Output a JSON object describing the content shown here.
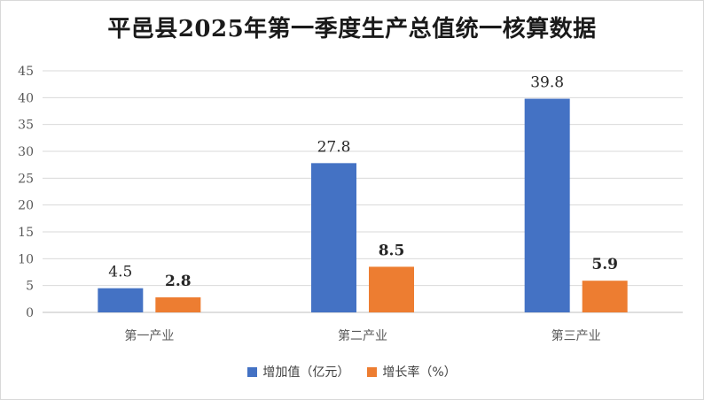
{
  "chart_data": {
    "type": "bar",
    "title": "平邑县2025年第一季度生产总值统一核算数据",
    "categories": [
      "第一产业",
      "第二产业",
      "第三产业"
    ],
    "series": [
      {
        "name": "增加值（亿元）",
        "values": [
          4.5,
          27.8,
          39.8
        ],
        "labels": [
          "4.5",
          "27.8",
          "39.8"
        ],
        "color": "#4472C4",
        "label_bold": false
      },
      {
        "name": "增长率（%）",
        "values": [
          2.8,
          8.5,
          5.9
        ],
        "labels": [
          "2.8",
          "8.5",
          "5.9"
        ],
        "color": "#ED7D31",
        "label_bold": true
      }
    ],
    "yticks": [
      "0",
      "5",
      "10",
      "15",
      "20",
      "25",
      "30",
      "35",
      "40",
      "45"
    ],
    "ylim": [
      0,
      45
    ],
    "grid": true,
    "legend_position": "bottom"
  }
}
